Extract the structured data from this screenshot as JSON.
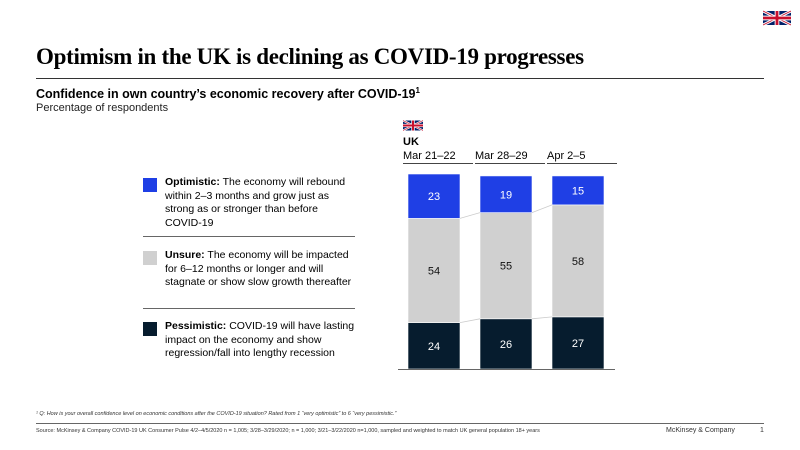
{
  "title": "Optimism in the UK is declining as COVID-19 progresses",
  "subtitle": "Confidence in own country’s economic recovery after COVID-19",
  "subtitle_footnote_ref": "1",
  "unit": "Percentage of respondents",
  "country_label": "UK",
  "legend": [
    {
      "key": "optimistic",
      "label": "Optimistic:",
      "text": " The economy will rebound within 2–3 months and grow just as strong as or stronger than before COVID-19",
      "color": "#1F3FE5"
    },
    {
      "key": "unsure",
      "label": "Unsure:",
      "text": " The economy will be impacted for 6–12 months or longer and will stagnate or show slow growth thereafter",
      "color": "#D0D0D0"
    },
    {
      "key": "pessimistic",
      "label": "Pessimistic:",
      "text": " COVID-19 will have lasting impact on the economy and show regression/fall into lengthy recession",
      "color": "#061C2E"
    }
  ],
  "chart_data": {
    "type": "bar",
    "stacked": true,
    "title": "Confidence in own country’s economic recovery after COVID-19",
    "ylabel": "Percentage of respondents",
    "categories": [
      "Mar 21–22",
      "Mar 28–29",
      "Apr 2–5"
    ],
    "series": [
      {
        "name": "Pessimistic",
        "color": "#061C2E",
        "values": [
          24,
          26,
          27
        ]
      },
      {
        "name": "Unsure",
        "color": "#D0D0D0",
        "values": [
          54,
          55,
          58
        ]
      },
      {
        "name": "Optimistic",
        "color": "#1F3FE5",
        "values": [
          23,
          19,
          15
        ]
      }
    ],
    "ylim": [
      0,
      101
    ]
  },
  "footnote": "¹ Q: How is your overall confidence level on economic conditions after the COVID-19 situation? Rated from 1 “very optimistic” to 6 “very pessimistic.”",
  "source": "Source: McKinsey & Company COVID-19 UK Consumer Pulse 4/2–4/5/2020 n = 1,005; 3/28–3/29/2020; n = 1,000; 3/21–3/22/2020 n=1,000, sampled and weighted to match UK general population 18+ years",
  "brand": "McKinsey & Company",
  "page_number": "1"
}
